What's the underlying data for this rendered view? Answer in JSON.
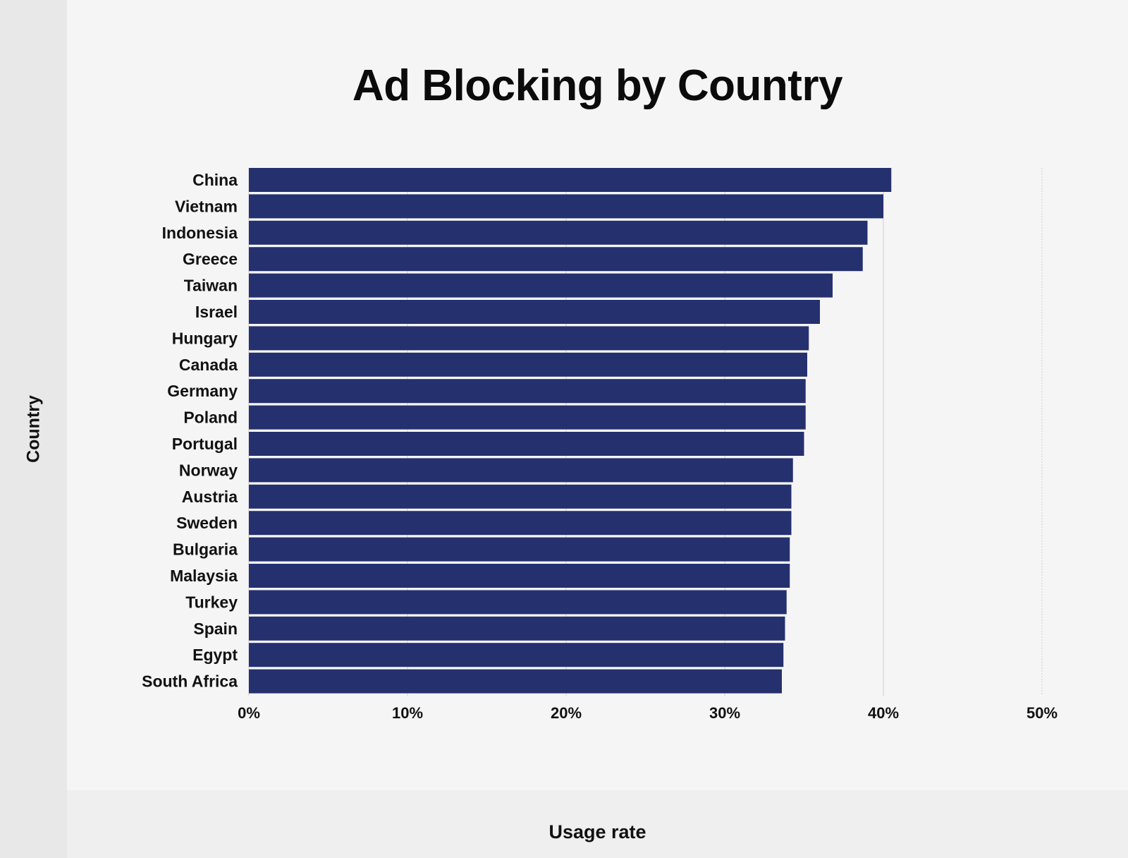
{
  "chart_data": {
    "type": "bar",
    "orientation": "horizontal",
    "title": "Ad Blocking by Country",
    "xlabel": "Usage rate",
    "ylabel": "Country",
    "categories": [
      "China",
      "Vietnam",
      "Indonesia",
      "Greece",
      "Taiwan",
      "Israel",
      "Hungary",
      "Canada",
      "Germany",
      "Poland",
      "Portugal",
      "Norway",
      "Austria",
      "Sweden",
      "Bulgaria",
      "Malaysia",
      "Turkey",
      "Spain",
      "Egypt",
      "South Africa"
    ],
    "values": [
      40.5,
      40.0,
      39.0,
      38.7,
      36.8,
      36.0,
      35.3,
      35.2,
      35.1,
      35.1,
      35.0,
      34.3,
      34.2,
      34.2,
      34.1,
      34.1,
      33.9,
      33.8,
      33.7,
      33.6
    ],
    "xlim": [
      0,
      50
    ],
    "xticks": [
      "0%",
      "10%",
      "20%",
      "30%",
      "40%",
      "50%"
    ],
    "bar_color": "#25306f",
    "grid": true
  }
}
